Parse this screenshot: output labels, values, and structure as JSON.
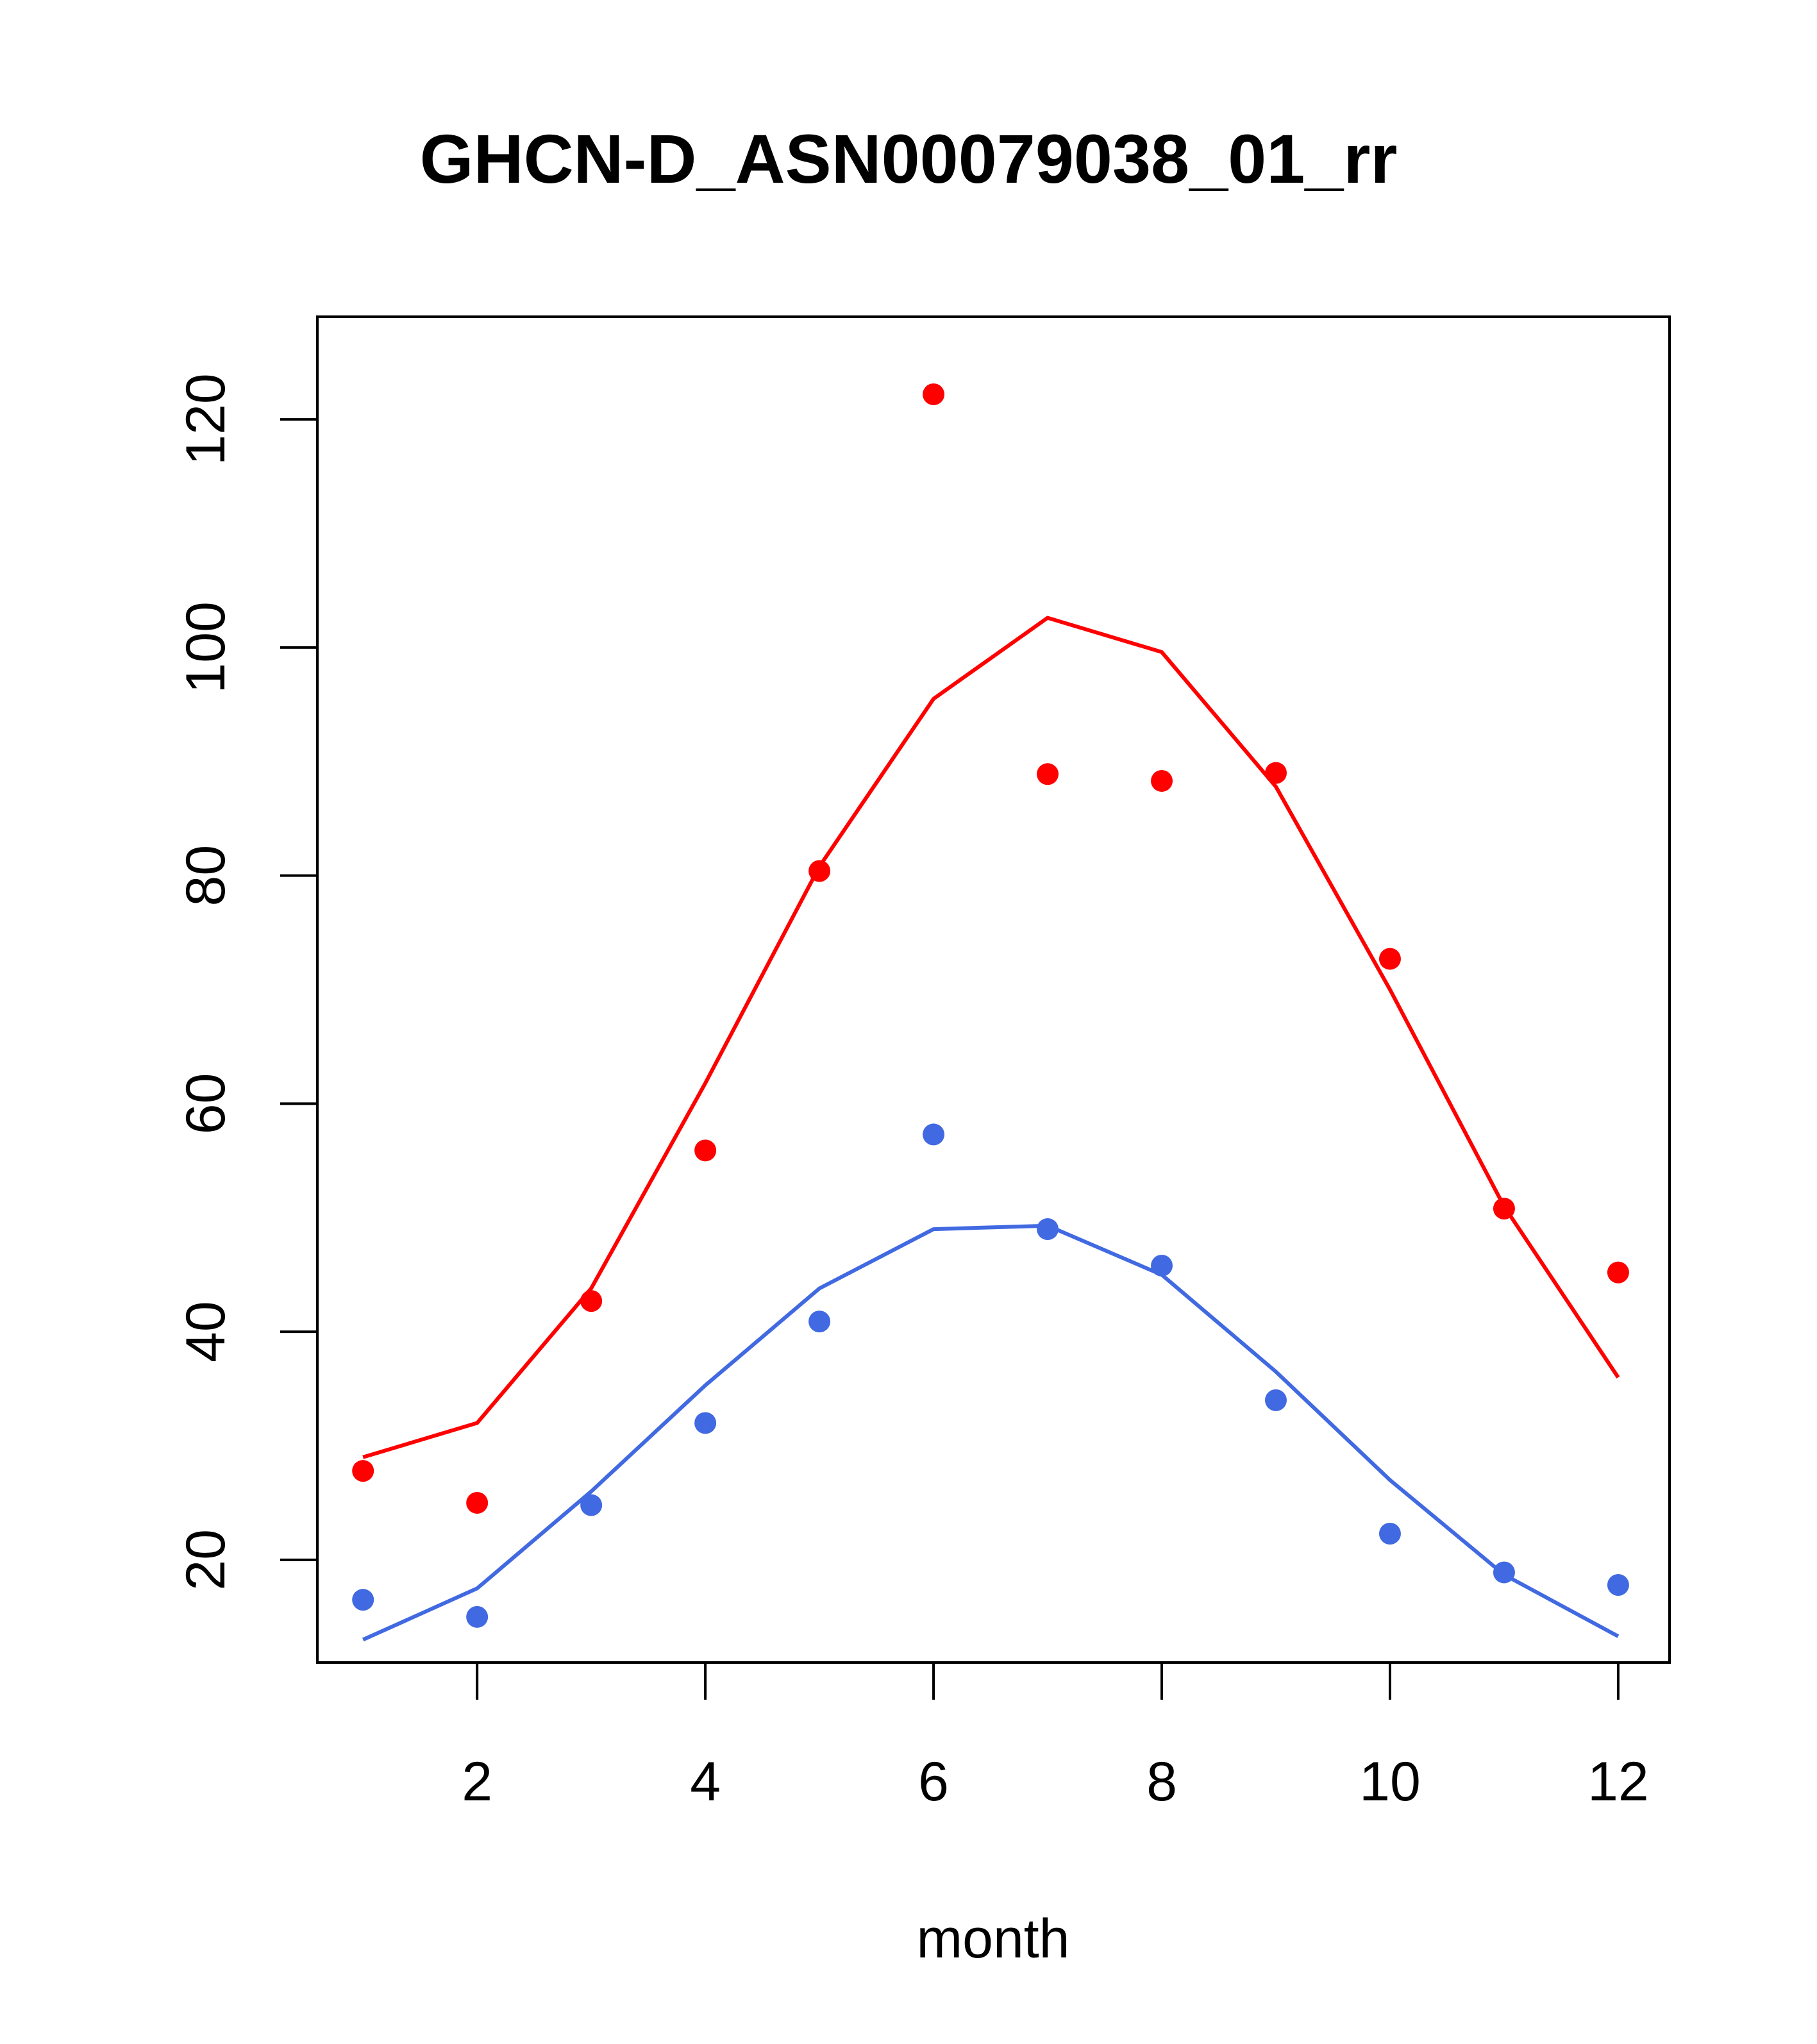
{
  "chart_data": {
    "type": "line",
    "title": "GHCN-D_ASN00079038_01_rr",
    "xlabel": "month",
    "ylabel": "",
    "xlim": [
      0.6,
      12.45
    ],
    "ylim": [
      11,
      129
    ],
    "x_ticks": [
      2,
      4,
      6,
      8,
      10,
      12
    ],
    "y_ticks": [
      20,
      40,
      60,
      80,
      100,
      120
    ],
    "x": [
      1,
      2,
      3,
      4,
      5,
      6,
      7,
      8,
      9,
      10,
      11,
      12
    ],
    "grid": false,
    "series": [
      {
        "color": "#ff0000",
        "points": [
          27.8,
          25.0,
          42.7,
          55.9,
          80.4,
          122.2,
          88.9,
          88.3,
          89.0,
          72.7,
          50.8,
          45.2
        ],
        "line": [
          29.0,
          32.0,
          43.8,
          61.8,
          80.8,
          95.5,
          102.6,
          99.6,
          87.8,
          70.0,
          51.0,
          36.0
        ]
      },
      {
        "color": "#4169e1",
        "points": [
          16.5,
          15.0,
          24.8,
          32.0,
          40.9,
          57.3,
          49.0,
          45.8,
          34.0,
          22.3,
          18.9,
          17.8
        ],
        "line": [
          13.0,
          17.5,
          26.0,
          35.3,
          43.8,
          49.0,
          49.3,
          45.0,
          36.5,
          27.0,
          18.7,
          13.3
        ]
      }
    ]
  }
}
